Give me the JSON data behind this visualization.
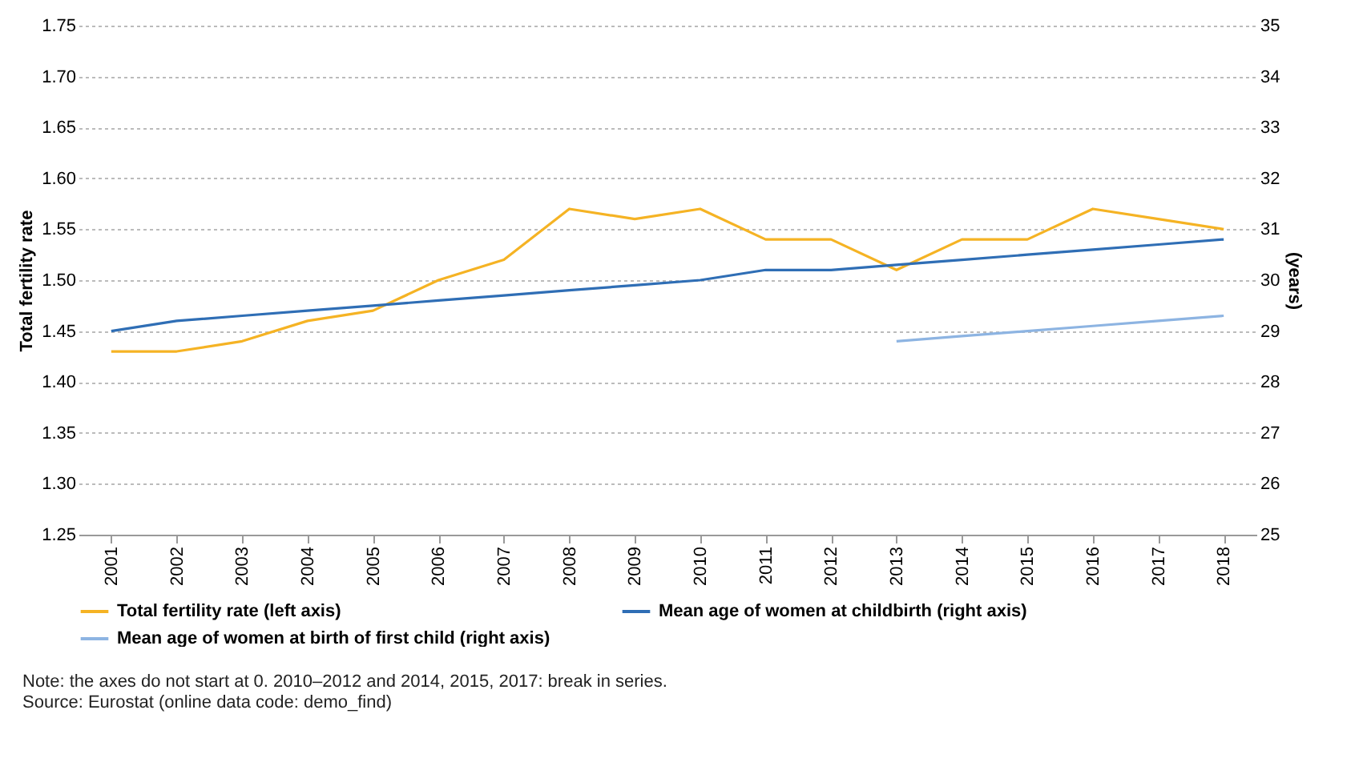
{
  "chart_data": {
    "type": "line",
    "categories": [
      "2001",
      "2002",
      "2003",
      "2004",
      "2005",
      "2006",
      "2007",
      "2008",
      "2009",
      "2010",
      "2011",
      "2012",
      "2013",
      "2014",
      "2015",
      "2016",
      "2017",
      "2018"
    ],
    "series": [
      {
        "name": "Total fertility rate (left axis)",
        "color": "#f5b324",
        "values": [
          1.43,
          1.43,
          1.44,
          1.46,
          1.47,
          1.5,
          1.52,
          1.57,
          1.56,
          1.57,
          1.54,
          1.54,
          1.51,
          1.54,
          1.54,
          1.57,
          1.56,
          1.55
        ]
      },
      {
        "name": "Mean age of women at childbirth (right axis)",
        "color": "#2f6eb5",
        "axis": "y2",
        "values": [
          29.0,
          29.2,
          29.3,
          29.4,
          29.5,
          29.6,
          29.7,
          29.8,
          29.9,
          30.0,
          30.2,
          30.2,
          30.3,
          30.4,
          30.5,
          30.6,
          30.7,
          30.8
        ]
      },
      {
        "name": "Mean age of women at birth of first child (right axis)",
        "color": "#8db4e2",
        "axis": "y2",
        "values": [
          null,
          null,
          null,
          null,
          null,
          null,
          null,
          null,
          null,
          null,
          null,
          null,
          28.8,
          28.9,
          29.0,
          29.1,
          29.2,
          29.3
        ]
      }
    ],
    "ylabel": "Total fertility rate",
    "y2label": "(years)",
    "ylim": [
      1.25,
      1.75
    ],
    "yticks": [
      {
        "value": 1.25,
        "label": "1.25"
      },
      {
        "value": 1.3,
        "label": "1.30"
      },
      {
        "value": 1.35,
        "label": "1.35"
      },
      {
        "value": 1.4,
        "label": "1.40"
      },
      {
        "value": 1.45,
        "label": "1.45"
      },
      {
        "value": 1.5,
        "label": "1.50"
      },
      {
        "value": 1.55,
        "label": "1.55"
      },
      {
        "value": 1.6,
        "label": "1.60"
      },
      {
        "value": 1.65,
        "label": "1.65"
      },
      {
        "value": 1.7,
        "label": "1.70"
      },
      {
        "value": 1.75,
        "label": "1.75"
      }
    ],
    "y2lim": [
      25,
      35
    ],
    "y2ticks": [
      25,
      26,
      27,
      28,
      29,
      30,
      31,
      32,
      33,
      34,
      35
    ],
    "grid": "y",
    "legend": "bottom",
    "annotations": [
      "Note: the axes do not start at 0. 2010–2012 and 2014, 2015, 2017: break in series.",
      "Source: Eurostat (online data code: demo_find)"
    ]
  }
}
